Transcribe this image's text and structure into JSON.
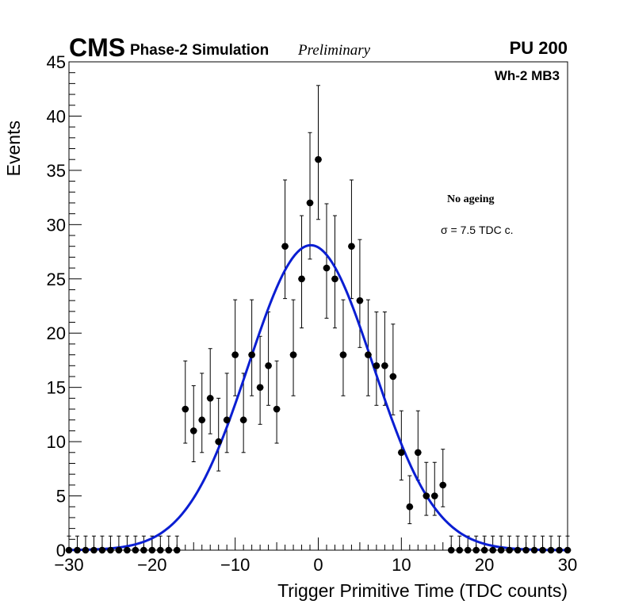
{
  "header": {
    "experiment": "CMS",
    "simulation": "Phase-2 Simulation",
    "status": "Preliminary",
    "pileup": "PU 200",
    "chamber": "Wh-2 MB3"
  },
  "annotations": {
    "condition": "No ageing",
    "sigma": "σ = 7.5 TDC c."
  },
  "chart_data": {
    "type": "scatter",
    "title": "",
    "xlabel": "Trigger Primitive Time (TDC counts)",
    "ylabel": "Events",
    "xlim": [
      -30,
      30
    ],
    "ylim": [
      0,
      45
    ],
    "xticks": [
      -30,
      -20,
      -10,
      0,
      10,
      20,
      30
    ],
    "xtick_labels": [
      "−30",
      "−20",
      "−10",
      "0",
      "10",
      "20",
      "30"
    ],
    "yticks": [
      0,
      5,
      10,
      15,
      20,
      25,
      30,
      35,
      40,
      45
    ],
    "ytick_labels": [
      "0",
      "5",
      "10",
      "15",
      "20",
      "25",
      "30",
      "35",
      "40",
      "45"
    ],
    "series": [
      {
        "name": "Data",
        "marker": "circle",
        "color": "#000000",
        "x": [
          -30,
          -29,
          -28,
          -27,
          -26,
          -25,
          -24,
          -23,
          -22,
          -21,
          -20,
          -19,
          -18,
          -17,
          -16,
          -15,
          -14,
          -13,
          -12,
          -11,
          -10,
          -9,
          -8,
          -7,
          -6,
          -5,
          -4,
          -3,
          -2,
          -1,
          0,
          1,
          2,
          3,
          4,
          5,
          6,
          7,
          8,
          9,
          10,
          11,
          12,
          13,
          14,
          15,
          16,
          17,
          18,
          19,
          20,
          21,
          22,
          23,
          24,
          25,
          26,
          27,
          28,
          29,
          30
        ],
        "y": [
          0,
          0,
          0,
          0,
          0,
          0,
          0,
          0,
          0,
          0,
          0,
          0,
          0,
          0,
          13,
          11,
          12,
          14,
          10,
          12,
          18,
          12,
          18,
          15,
          17,
          13,
          28,
          18,
          25,
          32,
          36,
          26,
          25,
          18,
          28,
          23,
          18,
          17,
          17,
          16,
          9,
          4,
          9,
          5,
          5,
          6,
          0,
          0,
          0,
          0,
          0,
          0,
          0,
          0,
          0,
          0,
          0,
          0,
          0,
          0,
          0
        ]
      },
      {
        "name": "Gaussian fit",
        "type": "line",
        "color": "#0a1ed2",
        "amplitude": 28.1,
        "mean": -0.9,
        "sigma": 7.5,
        "x_range": [
          -30,
          30
        ]
      }
    ]
  }
}
